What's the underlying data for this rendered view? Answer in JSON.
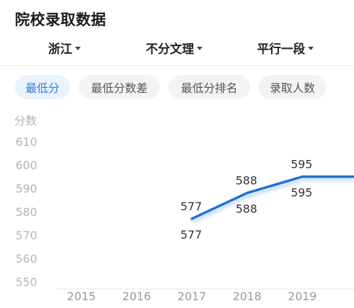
{
  "header": {
    "title": "院校录取数据"
  },
  "filters": [
    {
      "label": "浙江"
    },
    {
      "label": "不分文理"
    },
    {
      "label": "平行一段"
    }
  ],
  "tabs": [
    {
      "label": "最低分",
      "active": true
    },
    {
      "label": "最低分数差",
      "active": false
    },
    {
      "label": "最低分排名",
      "active": false
    },
    {
      "label": "录取人数",
      "active": false
    }
  ],
  "colors": {
    "accent": "#2f7ed8",
    "line": "#1a73d8",
    "muted": "#b4b4b4"
  },
  "chart_data": {
    "type": "line",
    "ylabel": "分数",
    "xlabel": "",
    "categories": [
      "2015",
      "2016",
      "2017",
      "2018",
      "2019"
    ],
    "y_ticks": [
      610,
      600,
      590,
      580,
      570,
      560,
      550
    ],
    "ylim": [
      550,
      610
    ],
    "grid": false,
    "legend": "none",
    "series": [
      {
        "values": [
          null,
          null,
          577,
          588,
          595
        ]
      }
    ],
    "data_labels_above": [
      "",
      "",
      "577",
      "588",
      "595"
    ],
    "data_labels_below": [
      "",
      "",
      "577",
      "588",
      "595"
    ]
  }
}
